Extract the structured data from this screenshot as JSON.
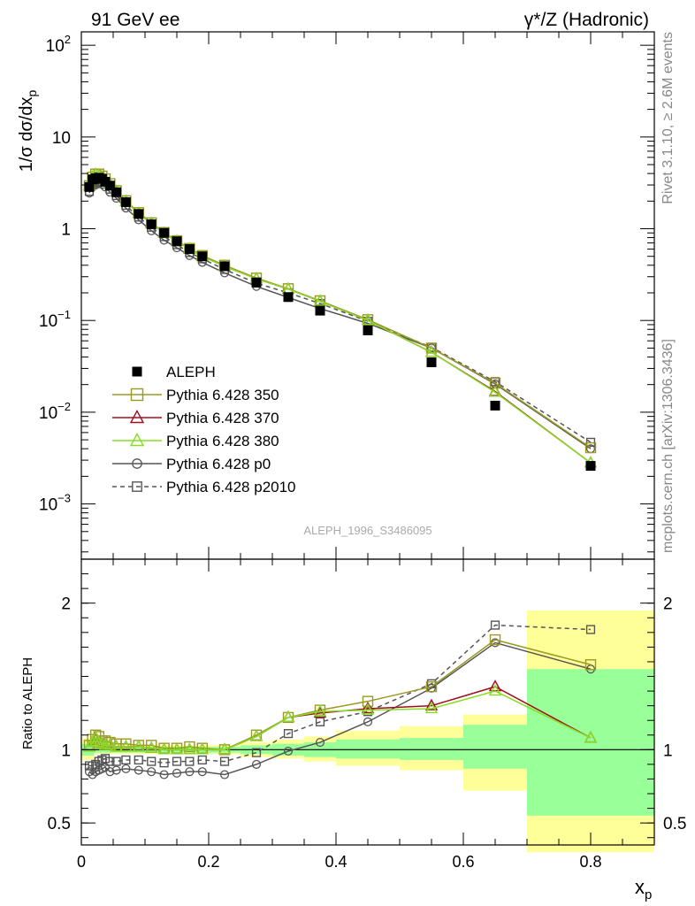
{
  "header": {
    "left": "91 GeV ee",
    "right": "γ*/Z (Hadronic)"
  },
  "side": {
    "rivet": "Rivet 3.1.10, ≥ 2.6M events",
    "source": "mcplots.cern.ch [arXiv:1306.3436]"
  },
  "analysis_name": "ALEPH_1996_S3486095",
  "chart_data": [
    {
      "type": "scatter",
      "title": "",
      "ylabel": "1/σ dσ/dx_p",
      "xlabel": "x_p",
      "xlim": [
        0,
        0.9
      ],
      "ylim": [
        0.00025,
        140
      ],
      "yscale": "log",
      "x_ticks": [
        "0",
        "0.2",
        "0.4",
        "0.6",
        "0.8"
      ],
      "y_ticks": [
        "10^-3",
        "10^-2",
        "10^-1",
        "1",
        "10",
        "10^2"
      ],
      "legend_position": "middle-left",
      "x": [
        0.0125,
        0.0175,
        0.0225,
        0.0275,
        0.0325,
        0.0375,
        0.045,
        0.055,
        0.07,
        0.09,
        0.11,
        0.13,
        0.15,
        0.17,
        0.19,
        0.225,
        0.275,
        0.325,
        0.375,
        0.45,
        0.55,
        0.65,
        0.8
      ],
      "series": [
        {
          "name": "ALEPH",
          "color": "#000000",
          "marker": "filled-square",
          "values": [
            2.85,
            3.45,
            3.55,
            3.6,
            3.5,
            3.25,
            2.95,
            2.5,
            1.95,
            1.45,
            1.12,
            0.9,
            0.73,
            0.6,
            0.5,
            0.39,
            0.26,
            0.18,
            0.128,
            0.078,
            0.035,
            0.0118,
            0.0026
          ]
        },
        {
          "name": "Pythia 6.428 350",
          "color": "#9a9a24",
          "marker": "open-square",
          "values": [
            2.95,
            3.65,
            3.95,
            3.95,
            3.75,
            3.5,
            3.1,
            2.6,
            2.02,
            1.5,
            1.16,
            0.91,
            0.74,
            0.61,
            0.51,
            0.4,
            0.29,
            0.222,
            0.164,
            0.102,
            0.05,
            0.0207,
            0.0041
          ]
        },
        {
          "name": "Pythia 6.428 370",
          "color": "#a01020",
          "marker": "open-triangle",
          "values": [
            2.95,
            3.65,
            3.9,
            3.8,
            3.65,
            3.4,
            3.05,
            2.55,
            1.98,
            1.47,
            1.14,
            0.89,
            0.73,
            0.6,
            0.5,
            0.39,
            0.285,
            0.22,
            0.162,
            0.1,
            0.045,
            0.0168,
            0.0028
          ]
        },
        {
          "name": "Pythia 6.428 380",
          "color": "#88dd22",
          "marker": "open-triangle",
          "values": [
            2.95,
            3.65,
            3.9,
            3.8,
            3.65,
            3.4,
            3.05,
            2.55,
            1.98,
            1.47,
            1.14,
            0.89,
            0.73,
            0.6,
            0.5,
            0.39,
            0.285,
            0.22,
            0.162,
            0.1,
            0.045,
            0.0165,
            0.0028
          ]
        },
        {
          "name": "Pythia 6.428 p0",
          "color": "#555555",
          "marker": "open-circle",
          "values": [
            2.45,
            2.85,
            3.0,
            3.1,
            3.05,
            2.85,
            2.5,
            2.15,
            1.68,
            1.25,
            0.95,
            0.75,
            0.62,
            0.51,
            0.43,
            0.33,
            0.235,
            0.178,
            0.135,
            0.093,
            0.05,
            0.0203,
            0.004
          ]
        },
        {
          "name": "Pythia 6.428 p2010",
          "color": "#555555",
          "marker": "open-square-dashed",
          "values": [
            2.55,
            3.1,
            3.2,
            3.3,
            3.25,
            3.05,
            2.7,
            2.3,
            1.8,
            1.34,
            1.04,
            0.82,
            0.67,
            0.55,
            0.47,
            0.36,
            0.255,
            0.2,
            0.153,
            0.098,
            0.051,
            0.0215,
            0.0047
          ]
        }
      ]
    },
    {
      "type": "line",
      "title": "",
      "ylabel": "Ratio to ALEPH",
      "xlabel": "x_p",
      "xlim": [
        0,
        0.9
      ],
      "ylim": [
        0.35,
        2.3
      ],
      "x_ticks": [
        "0",
        "0.2",
        "0.4",
        "0.6",
        "0.8"
      ],
      "y_ticks": [
        "0.5",
        "1",
        "2"
      ],
      "x": [
        0.0125,
        0.0175,
        0.0225,
        0.0275,
        0.0325,
        0.0375,
        0.045,
        0.055,
        0.07,
        0.09,
        0.11,
        0.13,
        0.15,
        0.17,
        0.19,
        0.225,
        0.275,
        0.325,
        0.375,
        0.45,
        0.55,
        0.65,
        0.8
      ],
      "uncertainty_bands": [
        {
          "x0": 0.0,
          "x1": 0.02,
          "stat_lo": 0.96,
          "stat_hi": 1.04,
          "tot_lo": 0.93,
          "tot_hi": 1.08
        },
        {
          "x0": 0.02,
          "x1": 0.25,
          "stat_lo": 0.98,
          "stat_hi": 1.02,
          "tot_lo": 0.97,
          "tot_hi": 1.03
        },
        {
          "x0": 0.25,
          "x1": 0.3,
          "stat_lo": 0.97,
          "stat_hi": 1.03,
          "tot_lo": 0.95,
          "tot_hi": 1.05
        },
        {
          "x0": 0.3,
          "x1": 0.35,
          "stat_lo": 0.96,
          "stat_hi": 1.04,
          "tot_lo": 0.94,
          "tot_hi": 1.07
        },
        {
          "x0": 0.35,
          "x1": 0.4,
          "stat_lo": 0.95,
          "stat_hi": 1.05,
          "tot_lo": 0.92,
          "tot_hi": 1.09
        },
        {
          "x0": 0.4,
          "x1": 0.5,
          "stat_lo": 0.94,
          "stat_hi": 1.07,
          "tot_lo": 0.89,
          "tot_hi": 1.13
        },
        {
          "x0": 0.5,
          "x1": 0.6,
          "stat_lo": 0.93,
          "stat_hi": 1.08,
          "tot_lo": 0.86,
          "tot_hi": 1.16
        },
        {
          "x0": 0.6,
          "x1": 0.7,
          "stat_lo": 0.87,
          "stat_hi": 1.17,
          "tot_lo": 0.72,
          "tot_hi": 1.24
        },
        {
          "x0": 0.7,
          "x1": 0.9,
          "stat_lo": 0.55,
          "stat_hi": 1.55,
          "tot_lo": 0.3,
          "tot_hi": 1.95
        }
      ],
      "series": [
        {
          "name": "Pythia 6.428 350",
          "color": "#9a9a24",
          "marker": "open-square",
          "values": [
            1.03,
            1.07,
            1.1,
            1.09,
            1.06,
            1.06,
            1.05,
            1.04,
            1.04,
            1.03,
            1.03,
            1.01,
            1.01,
            1.02,
            1.01,
            1.0,
            1.1,
            1.22,
            1.27,
            1.33,
            1.43,
            1.75,
            1.58
          ]
        },
        {
          "name": "Pythia 6.428 370",
          "color": "#a01020",
          "marker": "open-triangle",
          "values": [
            1.02,
            1.05,
            1.08,
            1.05,
            1.04,
            1.03,
            1.03,
            1.02,
            1.02,
            1.02,
            1.01,
            1.0,
            1.0,
            1.0,
            1.0,
            1.0,
            1.09,
            1.22,
            1.25,
            1.28,
            1.3,
            1.43,
            1.08
          ]
        },
        {
          "name": "Pythia 6.428 380",
          "color": "#88dd22",
          "marker": "open-triangle",
          "values": [
            1.02,
            1.05,
            1.08,
            1.05,
            1.04,
            1.03,
            1.03,
            1.02,
            1.02,
            1.02,
            1.01,
            1.0,
            1.0,
            1.0,
            1.0,
            1.0,
            1.09,
            1.22,
            1.26,
            1.27,
            1.28,
            1.4,
            1.08
          ]
        },
        {
          "name": "Pythia 6.428 p0",
          "color": "#555555",
          "marker": "open-circle",
          "values": [
            0.85,
            0.83,
            0.85,
            0.86,
            0.87,
            0.88,
            0.85,
            0.86,
            0.87,
            0.86,
            0.85,
            0.83,
            0.84,
            0.85,
            0.85,
            0.83,
            0.9,
            0.99,
            1.05,
            1.19,
            1.42,
            1.73,
            1.55
          ]
        },
        {
          "name": "Pythia 6.428 p2010",
          "color": "#555555",
          "marker": "open-square-dashed",
          "values": [
            0.89,
            0.89,
            0.9,
            0.92,
            0.93,
            0.94,
            0.92,
            0.92,
            0.93,
            0.93,
            0.92,
            0.91,
            0.92,
            0.92,
            0.93,
            0.92,
            0.98,
            1.11,
            1.19,
            1.26,
            1.45,
            1.85,
            1.82
          ]
        }
      ]
    }
  ]
}
